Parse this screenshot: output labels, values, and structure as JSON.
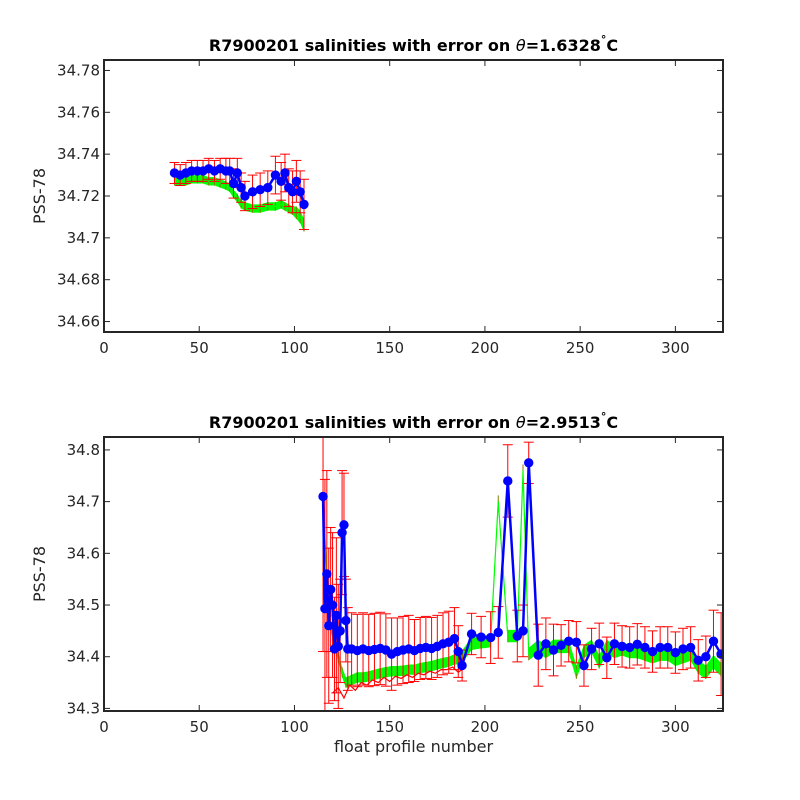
{
  "chart_data": [
    {
      "type": "line",
      "title_prefix": "R7900201 salinities with error on ",
      "title_symbol": "θ",
      "title_suffix": "=1.6328",
      "title_unit": "C",
      "xlabel": "",
      "ylabel": "PSS-78",
      "xlim": [
        0,
        325
      ],
      "ylim": [
        34.655,
        34.785
      ],
      "xticks": [
        "0",
        "50",
        "100",
        "150",
        "200",
        "250",
        "300"
      ],
      "xtick_values": [
        0,
        50,
        100,
        150,
        200,
        250,
        300
      ],
      "yticks": [
        "34.66",
        "34.68",
        "34.7",
        "34.72",
        "34.74",
        "34.76",
        "34.78"
      ],
      "ytick_values": [
        34.66,
        34.68,
        34.7,
        34.72,
        34.74,
        34.76,
        34.78
      ],
      "grid": false,
      "series": [
        {
          "role": "float_salinity",
          "x": [
            37,
            40,
            43,
            46,
            49,
            52,
            55,
            58,
            61,
            64,
            66,
            68,
            70,
            72,
            74,
            78,
            82,
            86,
            90,
            93,
            95,
            97,
            99,
            101,
            103,
            105
          ],
          "y": [
            34.731,
            34.73,
            34.731,
            34.732,
            34.732,
            34.732,
            34.733,
            34.732,
            34.733,
            34.732,
            34.732,
            34.726,
            34.731,
            34.724,
            34.72,
            34.722,
            34.723,
            34.724,
            34.73,
            34.727,
            34.731,
            34.724,
            34.722,
            34.727,
            34.722,
            34.716
          ],
          "err": [
            0.005,
            0.005,
            0.005,
            0.005,
            0.005,
            0.005,
            0.005,
            0.005,
            0.005,
            0.006,
            0.006,
            0.007,
            0.007,
            0.007,
            0.007,
            0.008,
            0.008,
            0.008,
            0.009,
            0.009,
            0.009,
            0.009,
            0.01,
            0.01,
            0.01,
            0.012
          ]
        },
        {
          "role": "mapped_salinity_band",
          "x": [
            37,
            40,
            43,
            46,
            49,
            52,
            55,
            58,
            61,
            64,
            66,
            68,
            70,
            72,
            74,
            78,
            82,
            86,
            90,
            93,
            95,
            97,
            99,
            101,
            103,
            105
          ],
          "y": [
            34.727,
            34.727,
            34.727,
            34.728,
            34.728,
            34.728,
            34.727,
            34.727,
            34.726,
            34.725,
            34.724,
            34.721,
            34.719,
            34.716,
            34.715,
            34.714,
            34.714,
            34.715,
            34.715,
            34.716,
            34.715,
            34.714,
            34.713,
            34.712,
            34.71,
            34.706
          ],
          "err": [
            0.002,
            0.002,
            0.002,
            0.002,
            0.002,
            0.002,
            0.002,
            0.002,
            0.002,
            0.002,
            0.002,
            0.002,
            0.002,
            0.002,
            0.002,
            0.002,
            0.002,
            0.002,
            0.002,
            0.002,
            0.002,
            0.002,
            0.002,
            0.003,
            0.003,
            0.003
          ]
        }
      ]
    },
    {
      "type": "line",
      "title_prefix": "R7900201 salinities with error on ",
      "title_symbol": "θ",
      "title_suffix": "=2.9513",
      "title_unit": "C",
      "xlabel": "float profile number",
      "ylabel": "PSS-78",
      "xlim": [
        0,
        325
      ],
      "ylim": [
        34.295,
        34.825
      ],
      "xticks": [
        "0",
        "50",
        "100",
        "150",
        "200",
        "250",
        "300"
      ],
      "xtick_values": [
        0,
        50,
        100,
        150,
        200,
        250,
        300
      ],
      "yticks": [
        "34.3",
        "34.4",
        "34.5",
        "34.6",
        "34.7",
        "34.8"
      ],
      "ytick_values": [
        34.3,
        34.4,
        34.5,
        34.6,
        34.7,
        34.8
      ],
      "grid": false,
      "series": [
        {
          "role": "float_salinity",
          "x": [
            115,
            116,
            117,
            118,
            119,
            120,
            121,
            122,
            123,
            124,
            125,
            126,
            127,
            128,
            130,
            133,
            136,
            139,
            142,
            145,
            148,
            151,
            154,
            157,
            160,
            163,
            166,
            169,
            172,
            175,
            178,
            181,
            184,
            186,
            188,
            193,
            198,
            203,
            207,
            212,
            217,
            220,
            223,
            228,
            232,
            236,
            240,
            244,
            248,
            252,
            256,
            260,
            264,
            268,
            272,
            276,
            280,
            284,
            288,
            292,
            296,
            300,
            304,
            308,
            312,
            316,
            320,
            324
          ],
          "y": [
            34.71,
            34.493,
            34.56,
            34.46,
            34.53,
            34.5,
            34.415,
            34.48,
            34.42,
            34.45,
            34.64,
            34.655,
            34.47,
            34.415,
            34.415,
            34.412,
            34.415,
            34.412,
            34.414,
            34.416,
            34.413,
            34.405,
            34.41,
            34.413,
            34.415,
            34.412,
            34.416,
            34.418,
            34.416,
            34.42,
            34.425,
            34.428,
            34.435,
            34.41,
            34.383,
            34.444,
            34.438,
            34.437,
            34.447,
            34.74,
            34.44,
            34.45,
            34.775,
            34.403,
            34.425,
            34.413,
            34.422,
            34.43,
            34.428,
            34.383,
            34.415,
            34.425,
            34.398,
            34.425,
            34.42,
            34.418,
            34.424,
            34.418,
            34.41,
            34.418,
            34.418,
            34.408,
            34.415,
            34.418,
            34.393,
            34.4,
            34.43,
            34.405
          ],
          "err": [
            0.3,
            0.25,
            0.2,
            0.15,
            0.12,
            0.14,
            0.1,
            0.15,
            0.12,
            0.1,
            0.12,
            0.1,
            0.08,
            0.08,
            0.07,
            0.07,
            0.07,
            0.07,
            0.07,
            0.07,
            0.07,
            0.07,
            0.065,
            0.065,
            0.065,
            0.06,
            0.06,
            0.06,
            0.06,
            0.06,
            0.06,
            0.06,
            0.06,
            0.05,
            0.03,
            0.04,
            0.04,
            0.05,
            0.05,
            0.07,
            0.05,
            0.05,
            0.04,
            0.06,
            0.05,
            0.05,
            0.04,
            0.04,
            0.04,
            0.04,
            0.04,
            0.04,
            0.04,
            0.04,
            0.04,
            0.04,
            0.04,
            0.04,
            0.04,
            0.04,
            0.04,
            0.04,
            0.04,
            0.04,
            0.04,
            0.04,
            0.06,
            0.08
          ]
        },
        {
          "role": "mapped_salinity_band",
          "x": [
            115,
            117,
            119,
            121,
            123,
            125,
            127,
            130,
            133,
            136,
            139,
            142,
            145,
            148,
            151,
            154,
            157,
            160,
            163,
            166,
            169,
            172,
            175,
            178,
            181,
            184,
            186,
            188,
            193,
            198,
            203,
            207,
            212,
            217,
            220,
            223,
            228,
            232,
            236,
            240,
            244,
            248,
            252,
            256,
            260,
            264,
            268,
            272,
            276,
            280,
            284,
            288,
            292,
            296,
            300,
            304,
            308,
            312,
            316,
            320,
            324
          ],
          "y": [
            34.7,
            34.56,
            34.46,
            34.43,
            34.4,
            34.37,
            34.35,
            34.355,
            34.36,
            34.36,
            34.362,
            34.365,
            34.368,
            34.37,
            34.372,
            34.372,
            34.373,
            34.375,
            34.375,
            34.378,
            34.38,
            34.382,
            34.385,
            34.388,
            34.39,
            34.395,
            34.395,
            34.4,
            34.425,
            34.428,
            34.43,
            34.7,
            34.44,
            34.44,
            34.76,
            34.405,
            34.42,
            34.41,
            34.42,
            34.42,
            34.42,
            34.37,
            34.41,
            34.42,
            34.39,
            34.42,
            34.41,
            34.415,
            34.41,
            34.41,
            34.405,
            34.4,
            34.405,
            34.405,
            34.395,
            34.4,
            34.405,
            34.38,
            34.37,
            34.39,
            34.375
          ],
          "err": [
            0.01,
            0.01,
            0.01,
            0.01,
            0.01,
            0.01,
            0.01,
            0.01,
            0.01,
            0.01,
            0.01,
            0.01,
            0.01,
            0.01,
            0.01,
            0.01,
            0.01,
            0.01,
            0.01,
            0.01,
            0.01,
            0.01,
            0.01,
            0.01,
            0.01,
            0.01,
            0.01,
            0.012,
            0.012,
            0.012,
            0.012,
            0.012,
            0.012,
            0.012,
            0.012,
            0.012,
            0.013,
            0.013,
            0.013,
            0.013,
            0.013,
            0.013,
            0.013,
            0.013,
            0.013,
            0.013,
            0.013,
            0.013,
            0.013,
            0.013,
            0.013,
            0.013,
            0.013,
            0.013,
            0.013,
            0.013,
            0.013,
            0.013,
            0.013,
            0.013,
            0.013
          ]
        },
        {
          "role": "float_minus_error_trace",
          "x": [
            120,
            123,
            126,
            129,
            132,
            135,
            138,
            141,
            144,
            147,
            150,
            153,
            156,
            159,
            162,
            165,
            168,
            171,
            174,
            177,
            180,
            183,
            186,
            188
          ],
          "y": [
            34.33,
            34.34,
            34.32,
            34.345,
            34.335,
            34.35,
            34.345,
            34.355,
            34.35,
            34.36,
            34.352,
            34.362,
            34.358,
            34.365,
            34.36,
            34.368,
            34.365,
            34.372,
            34.368,
            34.375,
            34.375,
            34.38,
            34.37,
            34.375
          ]
        }
      ]
    }
  ]
}
